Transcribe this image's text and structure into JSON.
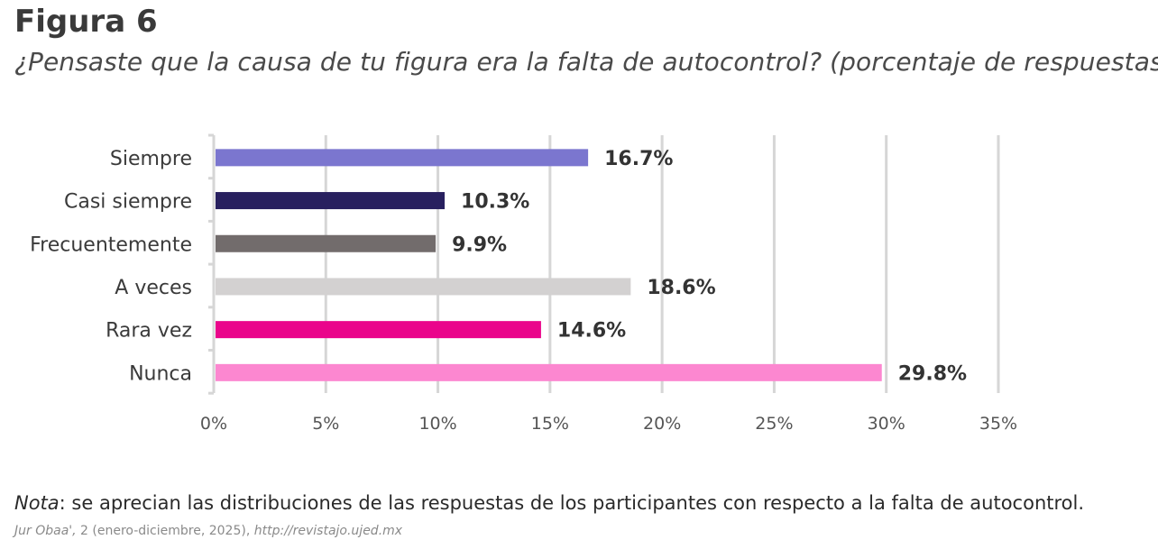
{
  "figure": {
    "label": "Figura 6",
    "title": "¿Pensaste que la causa de tu figura era la falta de autocontrol? (porcentaje de respuestas)"
  },
  "chart_data": {
    "type": "bar",
    "orientation": "horizontal",
    "title": "¿Pensaste que la causa de tu figura era la falta de autocontrol? (porcentaje de respuestas)",
    "xlabel": "",
    "ylabel": "",
    "xlim": [
      0,
      35
    ],
    "grid": true,
    "ticks": [
      {
        "value": 0,
        "label": "0%"
      },
      {
        "value": 5,
        "label": "5%"
      },
      {
        "value": 10,
        "label": "10%"
      },
      {
        "value": 15,
        "label": "15%"
      },
      {
        "value": 20,
        "label": "20%"
      },
      {
        "value": 25,
        "label": "25%"
      },
      {
        "value": 30,
        "label": "30%"
      },
      {
        "value": 35,
        "label": "35%"
      }
    ],
    "bars": [
      {
        "category": "Siempre",
        "value": 16.7,
        "label": "16.7%",
        "color": "#7b76cf"
      },
      {
        "category": "Casi siempre",
        "value": 10.3,
        "label": "10.3%",
        "color": "#28205f"
      },
      {
        "category": "Frecuentemente",
        "value": 9.9,
        "label": "9.9%",
        "color": "#726c6c"
      },
      {
        "category": "A veces",
        "value": 18.6,
        "label": "18.6%",
        "color": "#d3d1d1"
      },
      {
        "category": "Rara vez",
        "value": 14.6,
        "label": "14.6%",
        "color": "#ea058b"
      },
      {
        "category": "Nunca",
        "value": 29.8,
        "label": "29.8%",
        "color": "#fc87d0"
      }
    ]
  },
  "note": {
    "prefix": "Nota",
    "text": ": se aprecian las distribuciones de las respuestas de los participantes con respecto a la falta de autocontrol."
  },
  "source": {
    "journal": "Jur Obaa',",
    "details": " 2 (enero-diciembre, 2025), ",
    "url": "http://revistajo.ujed.mx"
  }
}
